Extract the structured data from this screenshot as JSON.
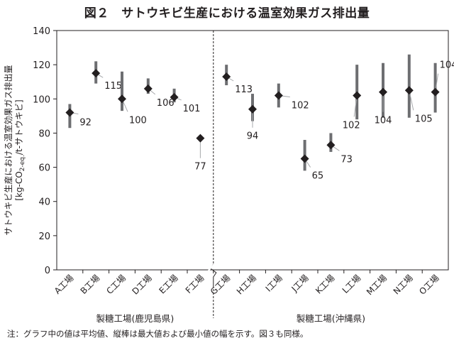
{
  "title": "図２　サトウキビ生産における温室効果ガス排出量",
  "note": "注：グラフ中の値は平均値、縦棒は最大値および最小値の幅を示す。図３も同様。",
  "chart_data": {
    "type": "scatter",
    "title": "図２　サトウキビ生産における温室効果ガス排出量",
    "ylabel_line1": "サトウキビ生産における温室効果ガス排出量",
    "ylabel_line2": "[kg-CO",
    "ylabel_sub": "2-eq.",
    "ylabel_line2_rest": "/t-サトウキビ]",
    "xlabel": "",
    "ylim": [
      0,
      140
    ],
    "yticks": [
      0,
      20,
      40,
      60,
      80,
      100,
      120,
      140
    ],
    "grid": false,
    "categories": [
      "A工場",
      "B工場",
      "C工場",
      "D工場",
      "E工場",
      "F工場",
      "G工場",
      "H工場",
      "I工場",
      "J工場",
      "K工場",
      "L工場",
      "M工場",
      "N工場",
      "O工場"
    ],
    "mean": [
      92,
      115,
      100,
      106,
      101,
      77,
      113,
      94,
      102,
      65,
      73,
      102,
      104,
      105,
      104
    ],
    "max": [
      97,
      122,
      116,
      112,
      106,
      null,
      120,
      103,
      109,
      76,
      80,
      120,
      121,
      126,
      121
    ],
    "min": [
      83,
      109,
      93,
      103,
      98,
      null,
      108,
      87,
      95,
      58,
      69,
      88,
      89,
      89,
      92
    ],
    "mean_labels": [
      "92",
      "115",
      "100",
      "106",
      "101",
      "77",
      "113",
      "94",
      "102",
      "65",
      "73",
      "102",
      "104",
      "105",
      "104"
    ],
    "groups": [
      {
        "label": "製糖工場(鹿児島県)",
        "start": 0,
        "end": 5
      },
      {
        "label": "製糖工場(沖縄県)",
        "start": 6,
        "end": 14
      }
    ],
    "colors": {
      "marker": "#231f20",
      "range_bar": "#6d6e71",
      "axis": "#231f20",
      "leader": "#a7a9ac"
    }
  }
}
